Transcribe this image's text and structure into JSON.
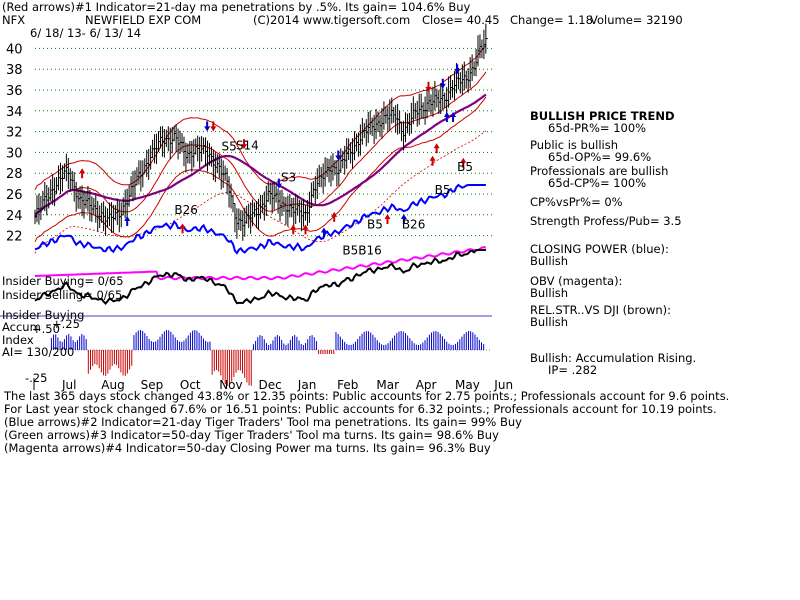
{
  "header": {
    "line1": "(Red arrows)#1 Indicator=21-day ma penetrations by .5%.  Its gain= 104.6% Buy",
    "symbol": "NFX",
    "company": "NEWFIELD EXP COM",
    "copyright": "(C)2014 www.tigersoft.com",
    "close_label": "Close=  40.45",
    "change_label": "Change= 1.18",
    "volume_label": "Volume= 32190",
    "date_range": "6/ 18/ 13-  6/ 13/ 14"
  },
  "right_panel": {
    "trend_title": "BULLISH PRICE TREND",
    "pr": "65d-PR%= 100%",
    "public_title": "Public is bullish",
    "op": "65d-OP%= 99.6%",
    "pro_title": "Professionals are bullish",
    "cp": "65d-CP%= 100%",
    "cpvspr": "CP%vsPr%=  0%",
    "strength": "Strength Profess/Pub= 3.5",
    "closing_power_title": "CLOSING POWER (blue):",
    "closing_power_val": "Bullish",
    "obv_title": "OBV (magenta):",
    "obv_val": "Bullish",
    "relstr_title": "REL.STR..VS DJI (brown):",
    "relstr_val": "Bullish",
    "accum_title": "Bullish: Accumulation Rising.",
    "ip": "IP=  .282"
  },
  "lower_labels": {
    "insider_buying": "Insider Buying= 0/65",
    "insider_selling": "Insider Selling= 0/65",
    "insider_buying2": "Insider Buying",
    "accum": "Accum",
    "plus25": "+.25",
    "index": "Index",
    "ai": "AI= 130/200",
    "minus25": "-.25",
    "plus50": "+.50"
  },
  "footer": {
    "line1": "The last 365 days stock changed  43.8% or  12.35 points:  Public accounts for  2.75 points.;  Professionals account for  9.6 points.",
    "line2": "For Last year stock changed  67.6% or  16.51 points:  Public accounts for  6.32 points.;  Professionals account for  10.19 points.",
    "line3": "(Blue arrows)#2 Indicator=21-day Tiger Traders' Tool ma penetrations. Its gain= 99% Buy",
    "line4": "(Green arrows)#3 Indicator=50-day Tiger Traders' Tool ma turns. Its gain= 98.6% Buy",
    "line5": "(Magenta arrows)#4 Indicator=50-day Closing Power ma turns. Its gain= 96.3% Buy"
  },
  "chart_data": {
    "type": "line",
    "title": "NEWFIELD EXP COM",
    "ylim": [
      21,
      41
    ],
    "y_ticks": [
      22,
      24,
      26,
      28,
      30,
      32,
      34,
      36,
      38,
      40
    ],
    "x_months": [
      "Jul",
      "Aug",
      "Sep",
      "Oct",
      "Nov",
      "Dec",
      "Jan",
      "Feb",
      "Mar",
      "Apr",
      "May",
      "Jun"
    ],
    "series": [
      {
        "name": "price",
        "x": [
          0,
          0.4,
          0.8,
          1.1,
          1.5,
          1.8,
          2.1,
          2.3,
          2.5,
          2.8,
          3.1,
          3.4,
          3.7,
          3.9,
          4.2,
          4.5,
          4.7,
          4.9,
          5.1,
          5.4,
          5.7,
          6.0,
          6.3,
          6.6,
          6.8,
          7.0,
          7.2,
          7.4,
          7.6,
          7.9,
          8.2,
          8.5,
          8.8,
          9.0,
          9.3,
          9.6,
          9.8,
          10.0,
          10.2,
          10.5,
          10.7,
          10.85,
          11.0
        ],
        "values": [
          23.8,
          26.4,
          28.2,
          25.4,
          24.5,
          23.4,
          24.4,
          25.8,
          27.5,
          29.5,
          31.2,
          31.5,
          29.7,
          30.4,
          29.9,
          28.6,
          26.9,
          23.7,
          23.3,
          24.2,
          25.9,
          25.2,
          24.4,
          24.1,
          26.4,
          27.5,
          28.8,
          28.2,
          29.7,
          31.2,
          32.5,
          33.2,
          33.6,
          32.0,
          33.9,
          34.8,
          34.9,
          35.3,
          36.5,
          37.0,
          38.3,
          39.8,
          40.45
        ]
      }
    ],
    "signals": [
      {
        "label": "S5",
        "x": 4.55,
        "y": 30.2
      },
      {
        "label": "S14",
        "x": 4.9,
        "y": 30.3
      },
      {
        "label": "S3",
        "x": 6.0,
        "y": 27.2
      },
      {
        "label": "B26",
        "x": 3.4,
        "y": 24.1
      },
      {
        "label": "B5",
        "x": 8.1,
        "y": 22.7
      },
      {
        "label": "B26",
        "x": 8.95,
        "y": 22.7
      },
      {
        "label": "B5",
        "x": 10.3,
        "y": 28.2
      },
      {
        "label": "B5",
        "x": 9.75,
        "y": 26.0
      },
      {
        "label": "B5B16",
        "x": 7.5,
        "y": 20.2
      }
    ]
  },
  "colors": {
    "price": "#000000",
    "bands": "#cc0000",
    "ma50": "#800080",
    "closing_power": "#0000ff",
    "obv": "#ff00ff",
    "grid": "#008000",
    "accum_pos": "#0000cc",
    "accum_neg": "#cc0000",
    "relstr": "#000000"
  }
}
